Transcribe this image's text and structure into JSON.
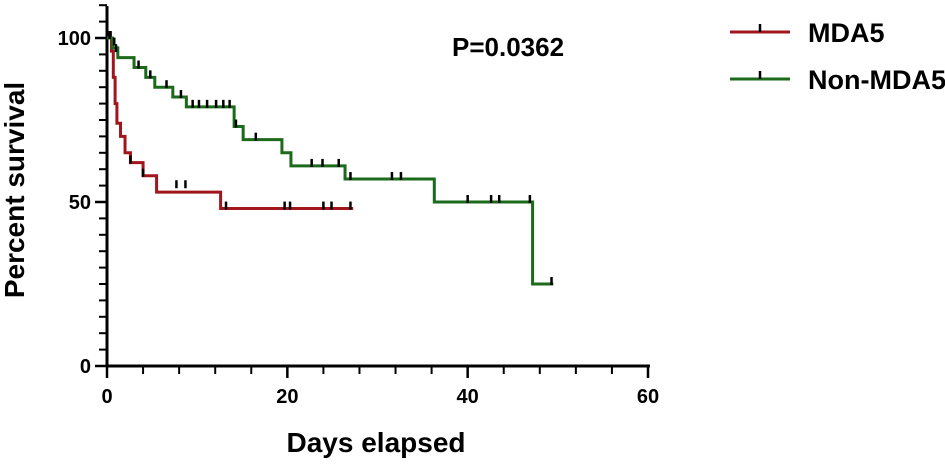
{
  "chart_data": {
    "type": "line",
    "subtype": "kaplan-meier",
    "xlabel": "Days elapsed",
    "ylabel": "Percent survival",
    "xlim": [
      0,
      60
    ],
    "ylim": [
      0,
      100
    ],
    "xticks": [
      0,
      20,
      40,
      60
    ],
    "yticks": [
      0,
      50,
      100
    ],
    "xtick_labels": [
      "0",
      "20",
      "40",
      "60"
    ],
    "ytick_labels": [
      "0",
      "50",
      "100"
    ],
    "annotation": "P=0.0362",
    "legend_position": "top-right",
    "grid": false,
    "series": [
      {
        "name": "MDA5",
        "color": "#a0161c",
        "steps": [
          [
            0,
            100
          ],
          [
            0.5,
            96
          ],
          [
            0.7,
            88
          ],
          [
            0.9,
            80
          ],
          [
            1.1,
            74
          ],
          [
            1.5,
            70
          ],
          [
            2.0,
            65
          ],
          [
            2.6,
            62
          ],
          [
            4.0,
            58
          ],
          [
            5.5,
            53
          ],
          [
            12.6,
            48
          ],
          [
            27.3,
            48
          ]
        ],
        "censored": [
          [
            0.4,
            100
          ],
          [
            2.6,
            62
          ],
          [
            4.0,
            58
          ],
          [
            7.7,
            54.5
          ],
          [
            8.7,
            54.5
          ],
          [
            13.2,
            48
          ],
          [
            19.7,
            48
          ],
          [
            20.3,
            48
          ],
          [
            24.0,
            48
          ],
          [
            24.9,
            48
          ],
          [
            27.0,
            48
          ]
        ]
      },
      {
        "name": "Non-MDA5",
        "color": "#1b6b1b",
        "steps": [
          [
            0,
            100
          ],
          [
            0.6,
            97
          ],
          [
            1.2,
            94
          ],
          [
            3.0,
            91
          ],
          [
            4.3,
            88
          ],
          [
            5.3,
            85
          ],
          [
            7.3,
            82
          ],
          [
            8.8,
            79
          ],
          [
            14.1,
            73
          ],
          [
            15.1,
            69
          ],
          [
            19.4,
            65
          ],
          [
            20.4,
            61
          ],
          [
            26.4,
            57
          ],
          [
            36.3,
            50
          ],
          [
            47.2,
            25
          ],
          [
            49.5,
            25
          ]
        ],
        "censored": [
          [
            0.3,
            100
          ],
          [
            0.8,
            98
          ],
          [
            1.0,
            96
          ],
          [
            3.5,
            91
          ],
          [
            4.8,
            88
          ],
          [
            6.6,
            85
          ],
          [
            8.2,
            82
          ],
          [
            9.5,
            79
          ],
          [
            10.2,
            79
          ],
          [
            11.1,
            79
          ],
          [
            12.1,
            79
          ],
          [
            12.9,
            79
          ],
          [
            13.6,
            79
          ],
          [
            14.3,
            73
          ],
          [
            16.5,
            69
          ],
          [
            22.7,
            61
          ],
          [
            23.9,
            61
          ],
          [
            25.7,
            61
          ],
          [
            27.0,
            57
          ],
          [
            31.6,
            57
          ],
          [
            32.6,
            57
          ],
          [
            40.0,
            50
          ],
          [
            42.6,
            50
          ],
          [
            43.5,
            50
          ],
          [
            46.9,
            50
          ],
          [
            49.3,
            25
          ]
        ]
      }
    ]
  }
}
